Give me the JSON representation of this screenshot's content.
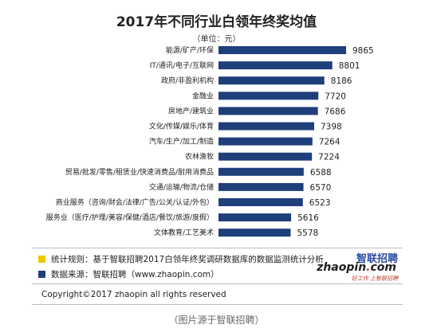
{
  "chart_data": {
    "type": "bar",
    "orientation": "horizontal",
    "title": "2017年不同行业白领年终奖均值",
    "unit": "（单位：元）",
    "categories": [
      "能源/矿产/环保",
      "IT/通讯/电子/互联网",
      "政府/非盈利机构",
      "金融业",
      "房地产/建筑业",
      "文化/传媒/娱乐/体育",
      "汽车/生产/加工/制造",
      "农林渔牧",
      "贸易/批发/零售/租赁业/快速消费品/耐用消费品",
      "交通/运输/物流/仓储",
      "商业服务（咨询/财会/法律/广告/公关/认证/外包）",
      "服务业（医疗/护理/美容/保健/酒店/餐饮/旅游/度假）",
      "文体教育/工艺美术"
    ],
    "values": [
      9865,
      8801,
      8186,
      7720,
      7686,
      7398,
      7264,
      7224,
      6588,
      6570,
      6523,
      5616,
      5578
    ],
    "value_labels": [
      "9865",
      "8801",
      "8186",
      "7720",
      "7686",
      "7398",
      "7264",
      "7224",
      "6588",
      "6570",
      "6523",
      "5616",
      "5578"
    ],
    "xlim": [
      0,
      10000
    ],
    "bar_color": "#1f3f7a",
    "grid": false,
    "legend": "none"
  },
  "legend": {
    "items": [
      {
        "text": "统计规则：基于智联招聘2017白领年终奖调研数据库的数据监测统计分析",
        "color": "#f2c500"
      },
      {
        "text": "数据来源：智联招聘（www.zhaopin.com）",
        "color": "#1f3f7a"
      }
    ]
  },
  "logo": {
    "cn": "智联招聘",
    "en_main": "zhaopin",
    "en_dot": ".",
    "en_tld": "com",
    "slogan": "好工作  上智联招聘"
  },
  "footer": {
    "copyright": "Copyright©2017 zhaopin all rights reserved",
    "caption": "（图片源于智联招聘）"
  }
}
